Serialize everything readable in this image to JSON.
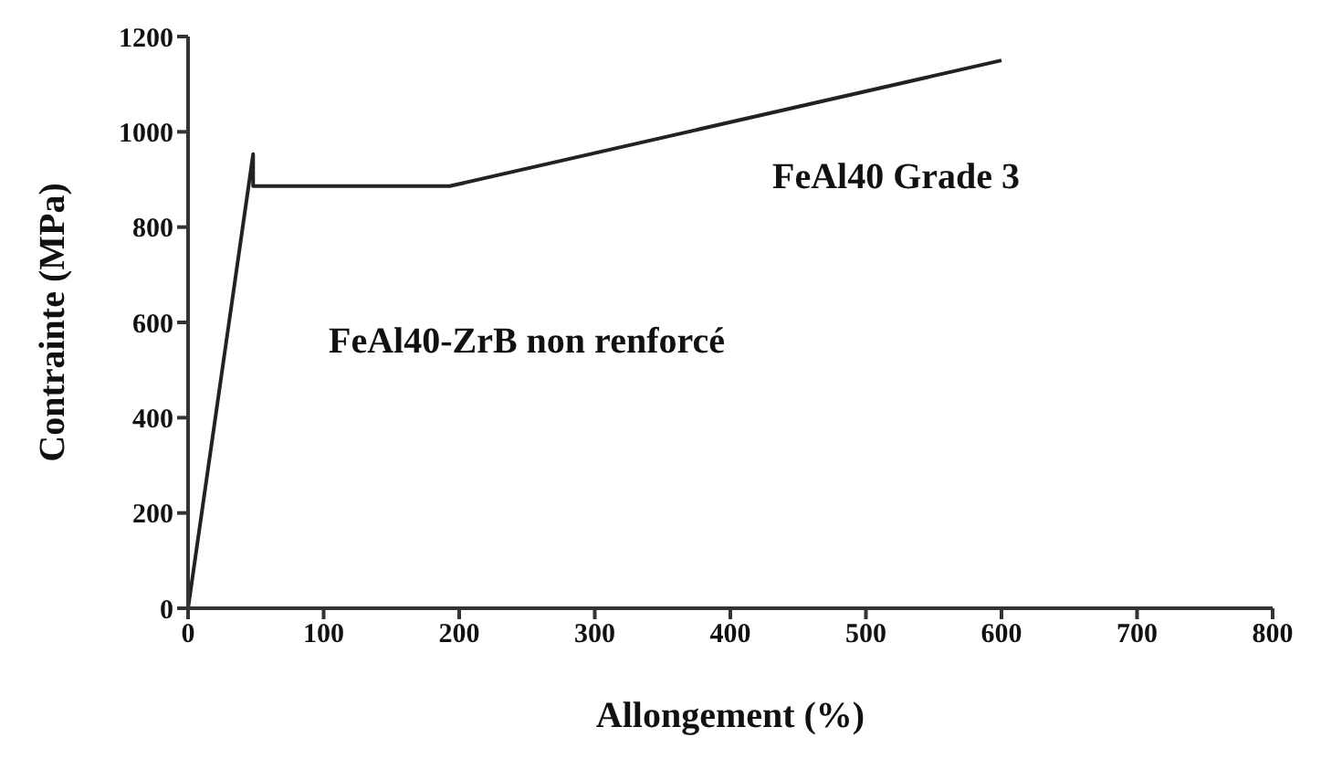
{
  "chart_data": {
    "type": "line",
    "xlabel": "Allongement (%)",
    "ylabel": "Contrainte (MPa)",
    "x": [
      0,
      48,
      48,
      193,
      600
    ],
    "series": [
      {
        "color": "#222222",
        "values": [
          0,
          953,
          886,
          886,
          1150
        ]
      }
    ],
    "xlim": [
      0,
      800
    ],
    "xticks": [
      0,
      100,
      200,
      300,
      400,
      500,
      600,
      700,
      800
    ],
    "ylim": [
      0,
      1200
    ],
    "yticks": [
      0,
      200,
      400,
      600,
      800,
      1000,
      1200
    ],
    "grid": false,
    "marker": "none",
    "line_style": "solid",
    "annotations": [
      "FeAl40 Grade 3",
      "FeAl40-ZrB non renforcé"
    ]
  }
}
